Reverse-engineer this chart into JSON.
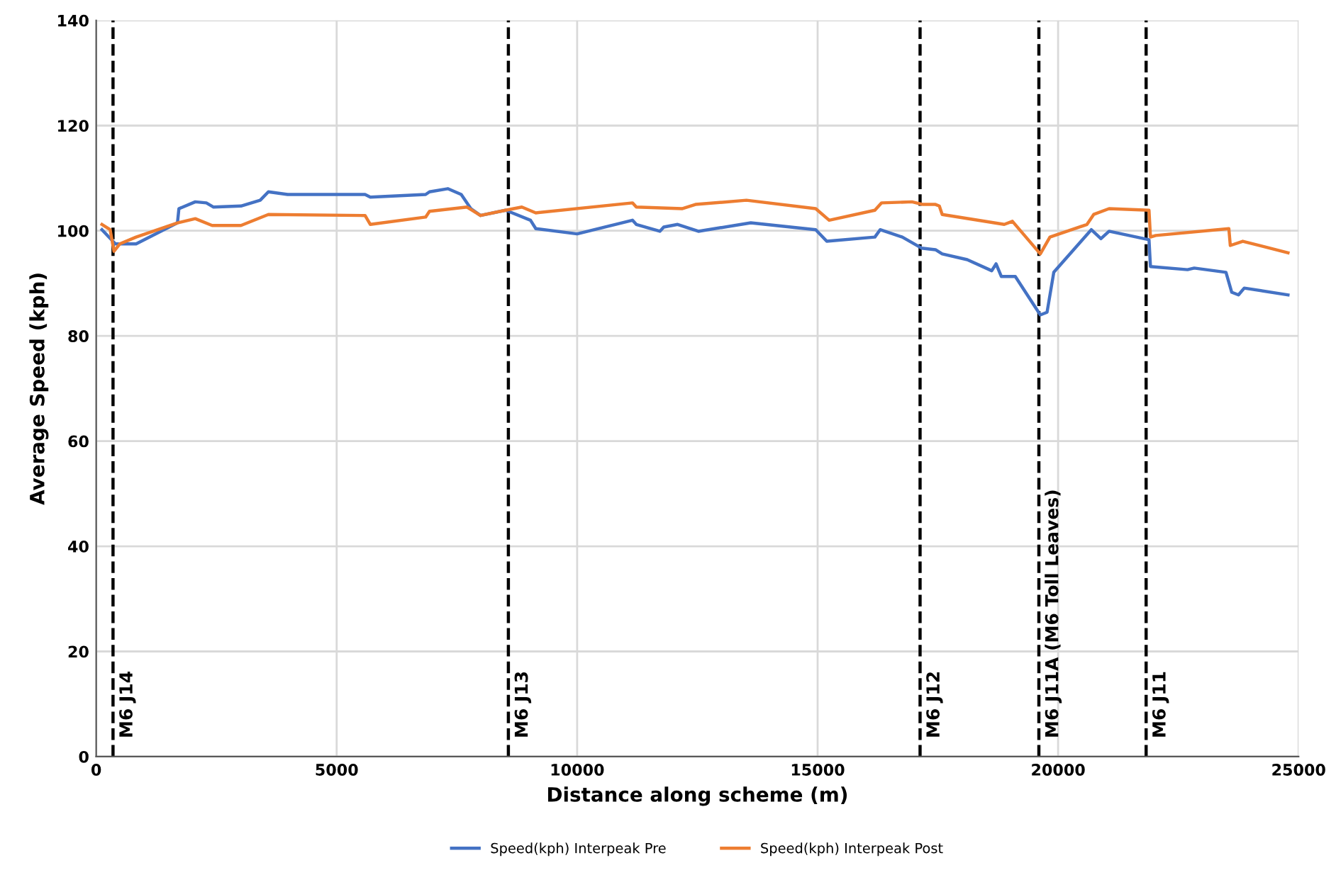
{
  "chart_data": {
    "type": "line",
    "xlabel": "Distance along scheme (m)",
    "ylabel": "Average Speed (kph)",
    "xlim": [
      0,
      25000
    ],
    "xticks": [
      0,
      5000,
      10000,
      15000,
      20000,
      25000
    ],
    "ylim": [
      0,
      140
    ],
    "yticks": [
      0,
      20,
      40,
      60,
      80,
      100,
      120,
      140
    ],
    "grid": true,
    "legend": "bottom",
    "marker": "none",
    "line_style": "solid",
    "series": [
      {
        "name": "Speed(kph) Interpeak Pre",
        "color": "#4472c4",
        "x": [
          120,
          400,
          830,
          1690,
          1720,
          2060,
          2290,
          2440,
          3010,
          3410,
          3580,
          3980,
          5590,
          5700,
          6850,
          6930,
          7310,
          7590,
          7790,
          7990,
          8510,
          8570,
          9030,
          9140,
          10000,
          11150,
          11230,
          11720,
          11800,
          12090,
          12520,
          13610,
          14960,
          15190,
          16190,
          16300,
          16760,
          17160,
          17450,
          17590,
          18110,
          18620,
          18710,
          18820,
          19110,
          19630,
          19770,
          19910,
          20690,
          20890,
          21060,
          21890,
          21920,
          22690,
          22830,
          23490,
          23610,
          23750,
          23870,
          24780
        ],
        "values": [
          100.2,
          97.5,
          97.5,
          101.5,
          104.2,
          105.5,
          105.3,
          104.5,
          104.7,
          105.8,
          107.4,
          106.9,
          106.9,
          106.4,
          106.9,
          107.4,
          108.0,
          106.9,
          104.2,
          102.9,
          103.9,
          103.7,
          102.0,
          100.4,
          99.4,
          102.0,
          101.2,
          99.9,
          100.7,
          101.2,
          99.9,
          101.5,
          100.2,
          98.0,
          98.8,
          100.2,
          98.8,
          96.7,
          96.4,
          95.6,
          94.5,
          92.4,
          93.7,
          91.3,
          91.3,
          84.0,
          84.5,
          92.1,
          100.2,
          98.5,
          99.9,
          98.3,
          93.2,
          92.6,
          92.9,
          92.1,
          88.3,
          87.8,
          89.1,
          87.8
        ]
      },
      {
        "name": "Speed(kph) Interpeak Post",
        "color": "#ed7d31",
        "x": [
          120,
          290,
          370,
          490,
          830,
          1690,
          2060,
          2410,
          3010,
          3580,
          5590,
          5700,
          6850,
          6930,
          7710,
          7990,
          8510,
          8850,
          9140,
          11150,
          11230,
          12180,
          12460,
          13520,
          14960,
          15240,
          16190,
          16330,
          16960,
          17190,
          17450,
          17530,
          17590,
          18880,
          19050,
          19630,
          19830,
          20600,
          20740,
          21060,
          21890,
          21920,
          22030,
          23550,
          23580,
          23840,
          24780
        ],
        "values": [
          101.2,
          100.2,
          96.1,
          97.5,
          98.8,
          101.5,
          102.3,
          101.0,
          101.0,
          103.1,
          102.9,
          101.2,
          102.6,
          103.7,
          104.5,
          102.9,
          103.9,
          104.5,
          103.4,
          105.3,
          104.5,
          104.2,
          105.0,
          105.8,
          104.2,
          102.0,
          103.9,
          105.3,
          105.5,
          105.0,
          105.0,
          104.7,
          103.1,
          101.2,
          101.8,
          95.6,
          98.8,
          101.2,
          103.1,
          104.2,
          103.9,
          98.8,
          99.1,
          100.4,
          97.2,
          98.0,
          95.8
        ]
      }
    ],
    "ref_lines": [
      {
        "axis": "x",
        "value": 350,
        "label": "M6 J14",
        "color": "#000000",
        "line_style": "dashed"
      },
      {
        "axis": "x",
        "value": 8570,
        "label": "M6 J13",
        "color": "#000000",
        "line_style": "dashed"
      },
      {
        "axis": "x",
        "value": 17130,
        "label": "M6 J12",
        "color": "#000000",
        "line_style": "dashed"
      },
      {
        "axis": "x",
        "value": 19600,
        "label": "M6 J11A (M6 Toll Leaves)",
        "color": "#000000",
        "line_style": "dashed"
      },
      {
        "axis": "x",
        "value": 21830,
        "label": "M6 J11",
        "color": "#000000",
        "line_style": "dashed"
      }
    ]
  }
}
